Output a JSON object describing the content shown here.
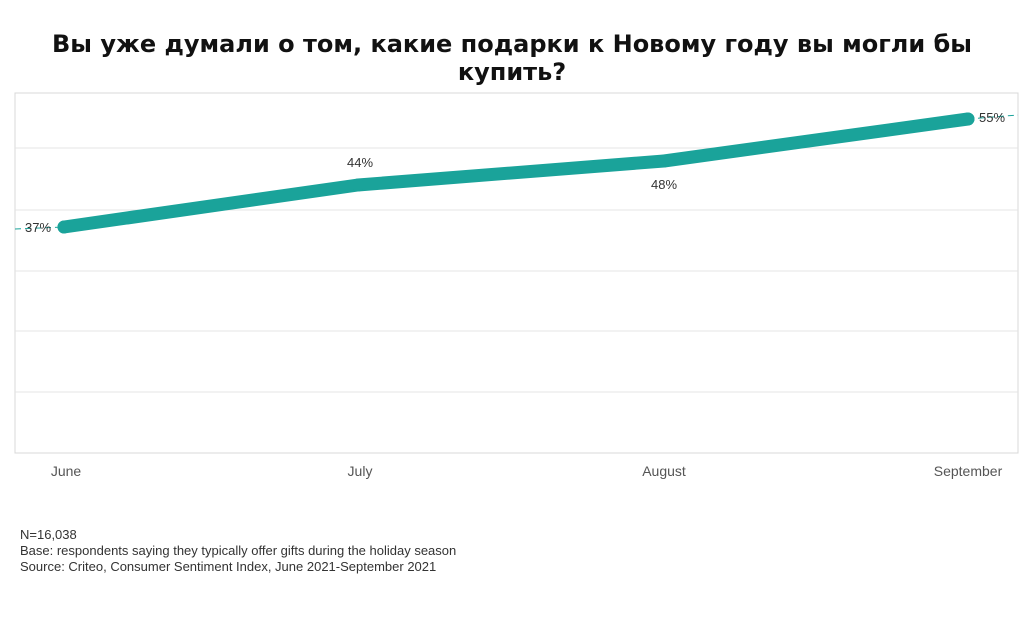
{
  "chart_data": {
    "type": "line",
    "title": "Вы уже думали о том,  какие подарки к Новому году вы могли бы купить?",
    "categories": [
      "June",
      "July",
      "August",
      "September"
    ],
    "series": [
      {
        "values": [
          37,
          44,
          48,
          55
        ],
        "labels": [
          "37%",
          "44%",
          "48%",
          "55%"
        ]
      }
    ],
    "ylim": [
      0,
      60
    ],
    "grid": true,
    "legend": "none",
    "colors": {
      "line": "#1aa39a",
      "grid": "#e4e4e4",
      "frame": "#d8d8d8",
      "text": "#333333"
    }
  },
  "notes": {
    "n": "N=16,038",
    "base": "Base: respondents saying they typically offer gifts during the holiday season",
    "source": "Source: Criteo, Consumer Sentiment Index, June 2021-September 2021"
  }
}
